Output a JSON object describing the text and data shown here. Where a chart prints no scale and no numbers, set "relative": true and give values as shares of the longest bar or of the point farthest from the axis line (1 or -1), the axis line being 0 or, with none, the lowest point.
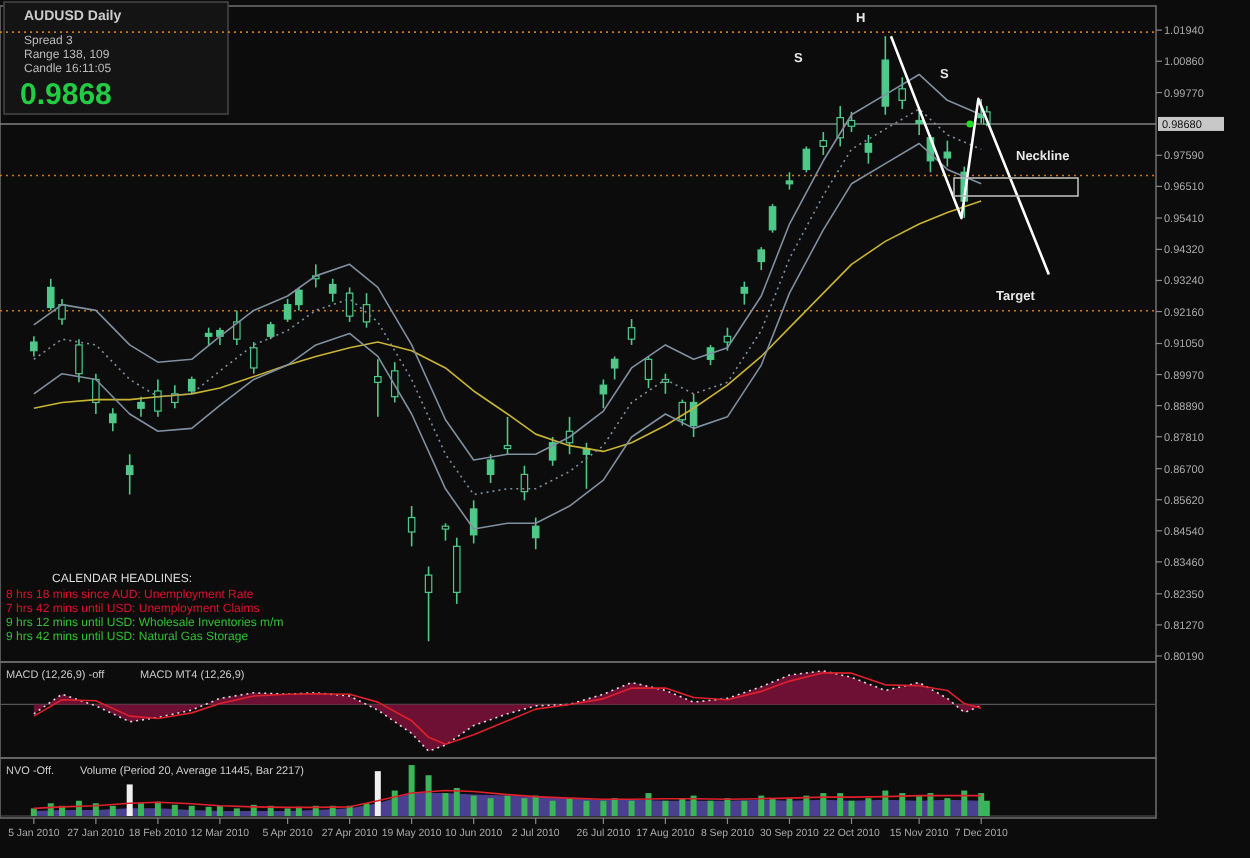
{
  "chart_data": [
    {
      "type": "candlestick",
      "title": "AUDUSD Daily",
      "annotations": [
        "Spread 3",
        "Range 138, 109",
        "Candle 16:11:05",
        "0.9868",
        "CALENDAR HEADLINES:",
        "8 hrs 18 mins since AUD: Unemployment Rate",
        "7 hrs 42 mins until USD: Unemployment Claims",
        "9 hrs 12 mins until USD: Wholesale Inventories m/m",
        "9 hrs 42 mins until USD: Natural Gas Storage",
        "H",
        "S",
        "S",
        "Neckline",
        "Target"
      ],
      "color": "#4fc98a",
      "x": [
        "2010-01-05",
        "2010-01-11",
        "2010-01-15",
        "2010-01-21",
        "2010-01-27",
        "2010-02-02",
        "2010-02-08",
        "2010-02-12",
        "2010-02-18",
        "2010-02-24",
        "2010-03-02",
        "2010-03-08",
        "2010-03-12",
        "2010-03-18",
        "2010-03-24",
        "2010-03-30",
        "2010-04-05",
        "2010-04-09",
        "2010-04-15",
        "2010-04-21",
        "2010-04-27",
        "2010-05-03",
        "2010-05-07",
        "2010-05-13",
        "2010-05-19",
        "2010-05-25",
        "2010-05-31",
        "2010-06-04",
        "2010-06-10",
        "2010-06-16",
        "2010-06-22",
        "2010-06-28",
        "2010-07-02",
        "2010-07-08",
        "2010-07-14",
        "2010-07-20",
        "2010-07-26",
        "2010-07-30",
        "2010-08-05",
        "2010-08-11",
        "2010-08-17",
        "2010-08-23",
        "2010-08-27",
        "2010-09-02",
        "2010-09-08",
        "2010-09-14",
        "2010-09-20",
        "2010-09-24",
        "2010-09-30",
        "2010-10-06",
        "2010-10-12",
        "2010-10-18",
        "2010-10-22",
        "2010-10-28",
        "2010-11-03",
        "2010-11-09",
        "2010-11-15",
        "2010-11-19",
        "2010-11-25",
        "2010-12-01",
        "2010-12-07",
        "2010-12-09"
      ],
      "ohlc": [
        [
          0.908,
          0.913,
          0.906,
          0.911
        ],
        [
          0.923,
          0.933,
          0.922,
          0.93
        ],
        [
          0.924,
          0.926,
          0.917,
          0.919
        ],
        [
          0.91,
          0.912,
          0.897,
          0.9
        ],
        [
          0.898,
          0.9,
          0.886,
          0.89
        ],
        [
          0.883,
          0.888,
          0.88,
          0.886
        ],
        [
          0.865,
          0.872,
          0.858,
          0.868
        ],
        [
          0.888,
          0.892,
          0.885,
          0.89
        ],
        [
          0.894,
          0.898,
          0.885,
          0.887
        ],
        [
          0.893,
          0.896,
          0.888,
          0.89
        ],
        [
          0.894,
          0.899,
          0.893,
          0.898
        ],
        [
          0.913,
          0.916,
          0.91,
          0.914
        ],
        [
          0.913,
          0.916,
          0.91,
          0.915
        ],
        [
          0.918,
          0.922,
          0.91,
          0.912
        ],
        [
          0.909,
          0.911,
          0.9,
          0.902
        ],
        [
          0.913,
          0.918,
          0.912,
          0.917
        ],
        [
          0.919,
          0.926,
          0.918,
          0.924
        ],
        [
          0.924,
          0.93,
          0.922,
          0.929
        ],
        [
          0.934,
          0.938,
          0.93,
          0.933
        ],
        [
          0.928,
          0.933,
          0.925,
          0.931
        ],
        [
          0.928,
          0.93,
          0.918,
          0.92
        ],
        [
          0.924,
          0.928,
          0.916,
          0.918
        ],
        [
          0.899,
          0.905,
          0.885,
          0.897
        ],
        [
          0.901,
          0.904,
          0.89,
          0.892
        ],
        [
          0.85,
          0.854,
          0.84,
          0.845
        ],
        [
          0.83,
          0.833,
          0.807,
          0.824
        ],
        [
          0.847,
          0.848,
          0.842,
          0.846
        ],
        [
          0.84,
          0.843,
          0.82,
          0.824
        ],
        [
          0.844,
          0.856,
          0.841,
          0.853
        ],
        [
          0.865,
          0.872,
          0.862,
          0.87
        ],
        [
          0.875,
          0.885,
          0.872,
          0.874
        ],
        [
          0.865,
          0.868,
          0.856,
          0.859
        ],
        [
          0.843,
          0.85,
          0.839,
          0.847
        ],
        [
          0.87,
          0.878,
          0.868,
          0.876
        ],
        [
          0.88,
          0.885,
          0.872,
          0.876
        ],
        [
          0.872,
          0.876,
          0.86,
          0.874
        ],
        [
          0.893,
          0.898,
          0.888,
          0.896
        ],
        [
          0.902,
          0.906,
          0.898,
          0.905
        ],
        [
          0.916,
          0.919,
          0.91,
          0.912
        ],
        [
          0.905,
          0.906,
          0.895,
          0.898
        ],
        [
          0.898,
          0.9,
          0.893,
          0.897
        ],
        [
          0.89,
          0.891,
          0.882,
          0.884
        ],
        [
          0.882,
          0.893,
          0.878,
          0.89
        ],
        [
          0.905,
          0.91,
          0.903,
          0.909
        ],
        [
          0.913,
          0.916,
          0.908,
          0.911
        ],
        [
          0.928,
          0.932,
          0.924,
          0.93
        ],
        [
          0.939,
          0.944,
          0.936,
          0.943
        ],
        [
          0.95,
          0.959,
          0.949,
          0.958
        ],
        [
          0.966,
          0.97,
          0.964,
          0.967
        ],
        [
          0.971,
          0.979,
          0.97,
          0.978
        ],
        [
          0.981,
          0.984,
          0.976,
          0.979
        ],
        [
          0.989,
          0.993,
          0.979,
          0.982
        ],
        [
          0.988,
          0.991,
          0.984,
          0.986
        ],
        [
          0.977,
          0.983,
          0.973,
          0.98
        ],
        [
          0.993,
          1.0173,
          0.99,
          1.009
        ],
        [
          0.999,
          1.003,
          0.992,
          0.995
        ],
        [
          0.987,
          0.992,
          0.983,
          0.988
        ],
        [
          0.974,
          0.983,
          0.97,
          0.982
        ],
        [
          0.975,
          0.981,
          0.972,
          0.977
        ],
        [
          0.96,
          0.972,
          0.9541,
          0.97
        ],
        [
          0.989,
          0.9955,
          0.987,
          0.99
        ],
        [
          0.991,
          0.993,
          0.986,
          0.9868
        ]
      ],
      "series": [
        {
          "type": "line",
          "color": "#c8b432",
          "x": [
            "2010-01-05",
            "2010-01-15",
            "2010-01-27",
            "2010-02-08",
            "2010-02-18",
            "2010-03-02",
            "2010-03-12",
            "2010-03-24",
            "2010-04-05",
            "2010-04-15",
            "2010-04-27",
            "2010-05-07",
            "2010-05-19",
            "2010-05-31",
            "2010-06-10",
            "2010-06-22",
            "2010-07-02",
            "2010-07-14",
            "2010-07-26",
            "2010-08-05",
            "2010-08-17",
            "2010-08-27",
            "2010-09-08",
            "2010-09-20",
            "2010-09-30",
            "2010-10-12",
            "2010-10-22",
            "2010-11-03",
            "2010-11-15",
            "2010-11-25",
            "2010-12-07"
          ],
          "values": [
            0.888,
            0.89,
            0.891,
            0.891,
            0.892,
            0.893,
            0.895,
            0.899,
            0.903,
            0.906,
            0.909,
            0.911,
            0.908,
            0.902,
            0.894,
            0.886,
            0.879,
            0.875,
            0.873,
            0.876,
            0.882,
            0.888,
            0.896,
            0.906,
            0.916,
            0.928,
            0.938,
            0.946,
            0.952,
            0.956,
            0.96
          ]
        },
        {
          "type": "line",
          "color": "#8090a0",
          "x": [
            "2010-01-05",
            "2010-01-15",
            "2010-01-27",
            "2010-02-08",
            "2010-02-18",
            "2010-03-02",
            "2010-03-12",
            "2010-03-24",
            "2010-04-05",
            "2010-04-15",
            "2010-04-27",
            "2010-05-07",
            "2010-05-19",
            "2010-05-31",
            "2010-06-10",
            "2010-06-22",
            "2010-07-02",
            "2010-07-14",
            "2010-07-26",
            "2010-08-05",
            "2010-08-17",
            "2010-08-27",
            "2010-09-08",
            "2010-09-20",
            "2010-09-30",
            "2010-10-12",
            "2010-10-22",
            "2010-11-03",
            "2010-11-15",
            "2010-11-25",
            "2010-12-07"
          ],
          "values": [
            0.917,
            0.924,
            0.922,
            0.91,
            0.904,
            0.905,
            0.913,
            0.922,
            0.927,
            0.934,
            0.938,
            0.93,
            0.91,
            0.884,
            0.87,
            0.872,
            0.872,
            0.878,
            0.887,
            0.902,
            0.91,
            0.905,
            0.909,
            0.927,
            0.952,
            0.974,
            0.99,
            0.997,
            1.004,
            0.995,
            0.99
          ]
        },
        {
          "type": "line",
          "color": "#8090a0",
          "line_style": "dotted",
          "x": [
            "2010-01-05",
            "2010-01-15",
            "2010-01-27",
            "2010-02-08",
            "2010-02-18",
            "2010-03-02",
            "2010-03-12",
            "2010-03-24",
            "2010-04-05",
            "2010-04-15",
            "2010-04-27",
            "2010-05-07",
            "2010-05-19",
            "2010-05-31",
            "2010-06-10",
            "2010-06-22",
            "2010-07-02",
            "2010-07-14",
            "2010-07-26",
            "2010-08-05",
            "2010-08-17",
            "2010-08-27",
            "2010-09-08",
            "2010-09-20",
            "2010-09-30",
            "2010-10-12",
            "2010-10-22",
            "2010-11-03",
            "2010-11-15",
            "2010-11-25",
            "2010-12-07"
          ],
          "values": [
            0.905,
            0.912,
            0.91,
            0.898,
            0.892,
            0.893,
            0.901,
            0.91,
            0.915,
            0.922,
            0.926,
            0.918,
            0.898,
            0.872,
            0.858,
            0.86,
            0.86,
            0.866,
            0.875,
            0.89,
            0.898,
            0.893,
            0.897,
            0.915,
            0.94,
            0.962,
            0.978,
            0.985,
            0.992,
            0.983,
            0.978
          ]
        },
        {
          "type": "line",
          "color": "#8090a0",
          "x": [
            "2010-01-05",
            "2010-01-15",
            "2010-01-27",
            "2010-02-08",
            "2010-02-18",
            "2010-03-02",
            "2010-03-12",
            "2010-03-24",
            "2010-04-05",
            "2010-04-15",
            "2010-04-27",
            "2010-05-07",
            "2010-05-19",
            "2010-05-31",
            "2010-06-10",
            "2010-06-22",
            "2010-07-02",
            "2010-07-14",
            "2010-07-26",
            "2010-08-05",
            "2010-08-17",
            "2010-08-27",
            "2010-09-08",
            "2010-09-20",
            "2010-09-30",
            "2010-10-12",
            "2010-10-22",
            "2010-11-03",
            "2010-11-15",
            "2010-11-25",
            "2010-12-07"
          ],
          "values": [
            0.893,
            0.9,
            0.898,
            0.886,
            0.88,
            0.881,
            0.889,
            0.898,
            0.903,
            0.91,
            0.914,
            0.906,
            0.886,
            0.86,
            0.846,
            0.848,
            0.848,
            0.854,
            0.863,
            0.878,
            0.886,
            0.881,
            0.885,
            0.903,
            0.928,
            0.95,
            0.966,
            0.973,
            0.98,
            0.971,
            0.966
          ]
        },
        {
          "type": "line",
          "color": "#ffffff",
          "x": [
            "2010-11-05",
            "2010-11-30",
            "2010-12-06",
            "2010-12-31"
          ],
          "values": [
            1.0173,
            0.9541,
            0.9955,
            0.9345
          ]
        }
      ],
      "ref_lines": [
        {
          "axis": "y",
          "value": 1.0187,
          "color": "#c87a14",
          "line_style": "dotted"
        },
        {
          "axis": "y",
          "value": 0.9689,
          "color": "#c87a14",
          "line_style": "dotted"
        },
        {
          "axis": "y",
          "value": 0.9219,
          "color": "#c87a14",
          "line_style": "dotted"
        },
        {
          "axis": "y",
          "value": 0.9868,
          "label": "0.98680",
          "color": "#808080",
          "line_style": "solid"
        }
      ],
      "xlim": [
        "2009-12-24",
        "2011-02-07"
      ],
      "ylim": [
        0.8005,
        1.0264
      ],
      "yticks": [
        {
          "value": 1.0194,
          "label": "1.01940"
        },
        {
          "value": 1.0086,
          "label": "1.00860"
        },
        {
          "value": 0.9977,
          "label": "0.99770"
        },
        {
          "value": 0.9759,
          "label": "0.97590"
        },
        {
          "value": 0.9651,
          "label": "0.96510"
        },
        {
          "value": 0.9541,
          "label": "0.95410"
        },
        {
          "value": 0.9432,
          "label": "0.94320"
        },
        {
          "value": 0.9324,
          "label": "0.93240"
        },
        {
          "value": 0.9216,
          "label": "0.92160"
        },
        {
          "value": 0.9105,
          "label": "0.91050"
        },
        {
          "value": 0.8997,
          "label": "0.89970"
        },
        {
          "value": 0.8889,
          "label": "0.88890"
        },
        {
          "value": 0.8781,
          "label": "0.87810"
        },
        {
          "value": 0.867,
          "label": "0.86700"
        },
        {
          "value": 0.8562,
          "label": "0.85620"
        },
        {
          "value": 0.8454,
          "label": "0.84540"
        },
        {
          "value": 0.8346,
          "label": "0.83460"
        },
        {
          "value": 0.8235,
          "label": "0.82350"
        },
        {
          "value": 0.8127,
          "label": "0.81270"
        },
        {
          "value": 0.8019,
          "label": "0.80190"
        }
      ],
      "tick_labels": "y"
    },
    {
      "type": "line",
      "title": "MACD (12,26,9) -off",
      "subtitle": "MACD MT4 (12,26,9)",
      "relative": true,
      "xlim": [
        "2009-12-24",
        "2011-02-07"
      ],
      "tick_labels": false,
      "series": [
        {
          "type": "area",
          "color": "#6e1034",
          "line_style": "dotted",
          "x": [
            "2010-01-05",
            "2010-01-15",
            "2010-01-27",
            "2010-02-08",
            "2010-02-18",
            "2010-03-02",
            "2010-03-12",
            "2010-03-24",
            "2010-04-05",
            "2010-04-15",
            "2010-04-27",
            "2010-05-07",
            "2010-05-19",
            "2010-05-25",
            "2010-05-31",
            "2010-06-10",
            "2010-06-22",
            "2010-07-02",
            "2010-07-14",
            "2010-07-26",
            "2010-08-05",
            "2010-08-17",
            "2010-08-27",
            "2010-09-08",
            "2010-09-20",
            "2010-09-30",
            "2010-10-12",
            "2010-10-22",
            "2010-11-03",
            "2010-11-15",
            "2010-11-25",
            "2010-12-01",
            "2010-12-07"
          ],
          "values": [
            -0.2,
            0.22,
            -0.03,
            -0.37,
            -0.28,
            -0.12,
            0.13,
            0.25,
            0.22,
            0.25,
            0.18,
            -0.12,
            -0.62,
            -1,
            -0.87,
            -0.45,
            -0.2,
            -0.03,
            0,
            0.22,
            0.47,
            0.3,
            0.05,
            0.13,
            0.38,
            0.63,
            0.72,
            0.58,
            0.3,
            0.47,
            0.13,
            -0.17,
            -0.03
          ]
        },
        {
          "type": "line",
          "color": "#e0202a",
          "x": [
            "2010-01-05",
            "2010-01-15",
            "2010-01-27",
            "2010-02-08",
            "2010-02-18",
            "2010-03-02",
            "2010-03-12",
            "2010-03-24",
            "2010-04-05",
            "2010-04-15",
            "2010-04-27",
            "2010-05-07",
            "2010-05-19",
            "2010-05-25",
            "2010-05-31",
            "2010-06-10",
            "2010-06-22",
            "2010-07-02",
            "2010-07-14",
            "2010-07-26",
            "2010-08-05",
            "2010-08-17",
            "2010-08-27",
            "2010-09-08",
            "2010-09-20",
            "2010-09-30",
            "2010-10-12",
            "2010-10-22",
            "2010-11-03",
            "2010-11-15",
            "2010-11-25",
            "2010-12-01",
            "2010-12-07"
          ],
          "values": [
            -0.25,
            0.1,
            0.08,
            -0.25,
            -0.3,
            -0.18,
            0.02,
            0.18,
            0.22,
            0.23,
            0.22,
            0.05,
            -0.35,
            -0.7,
            -0.85,
            -0.65,
            -0.35,
            -0.1,
            0,
            0.12,
            0.35,
            0.35,
            0.15,
            0.1,
            0.28,
            0.5,
            0.68,
            0.67,
            0.42,
            0.4,
            0.3,
            0.02,
            -0.08
          ]
        }
      ]
    },
    {
      "type": "bar",
      "title": "NVO -Off.",
      "subtitle": "Volume (Period 20, Average 11445, Bar 2217)",
      "relative": true,
      "xlim": [
        "2009-12-24",
        "2011-02-07"
      ],
      "tick_labels": "x",
      "xticks": [
        {
          "value": "2010-01-05",
          "label": "5 Jan 2010"
        },
        {
          "value": "2010-01-27",
          "label": "27 Jan 2010"
        },
        {
          "value": "2010-02-18",
          "label": "18 Feb 2010"
        },
        {
          "value": "2010-03-12",
          "label": "12 Mar 2010"
        },
        {
          "value": "2010-04-05",
          "label": "5 Apr 2010"
        },
        {
          "value": "2010-04-27",
          "label": "27 Apr 2010"
        },
        {
          "value": "2010-05-19",
          "label": "19 May 2010"
        },
        {
          "value": "2010-06-10",
          "label": "10 Jun 2010"
        },
        {
          "value": "2010-07-02",
          "label": "2 Jul 2010"
        },
        {
          "value": "2010-07-26",
          "label": "26 Jul 2010"
        },
        {
          "value": "2010-08-17",
          "label": "17 Aug 2010"
        },
        {
          "value": "2010-09-08",
          "label": "8 Sep 2010"
        },
        {
          "value": "2010-09-30",
          "label": "30 Sep 2010"
        },
        {
          "value": "2010-10-22",
          "label": "22 Oct 2010"
        },
        {
          "value": "2010-11-15",
          "label": "15 Nov 2010"
        },
        {
          "value": "2010-12-07",
          "label": "7 Dec 2010"
        }
      ],
      "x": [
        "2010-01-05",
        "2010-01-11",
        "2010-01-15",
        "2010-01-21",
        "2010-01-27",
        "2010-02-02",
        "2010-02-08",
        "2010-02-12",
        "2010-02-18",
        "2010-02-24",
        "2010-03-02",
        "2010-03-08",
        "2010-03-12",
        "2010-03-18",
        "2010-03-24",
        "2010-03-30",
        "2010-04-05",
        "2010-04-09",
        "2010-04-15",
        "2010-04-21",
        "2010-04-27",
        "2010-05-03",
        "2010-05-07",
        "2010-05-13",
        "2010-05-19",
        "2010-05-25",
        "2010-05-31",
        "2010-06-04",
        "2010-06-10",
        "2010-06-16",
        "2010-06-22",
        "2010-06-28",
        "2010-07-02",
        "2010-07-08",
        "2010-07-14",
        "2010-07-20",
        "2010-07-26",
        "2010-07-30",
        "2010-08-05",
        "2010-08-11",
        "2010-08-17",
        "2010-08-23",
        "2010-08-27",
        "2010-09-02",
        "2010-09-08",
        "2010-09-14",
        "2010-09-20",
        "2010-09-24",
        "2010-09-30",
        "2010-10-06",
        "2010-10-12",
        "2010-10-18",
        "2010-10-22",
        "2010-10-28",
        "2010-11-03",
        "2010-11-09",
        "2010-11-15",
        "2010-11-19",
        "2010-11-25",
        "2010-12-01",
        "2010-12-07",
        "2010-12-09"
      ],
      "values": [
        0.15,
        0.25,
        0.2,
        0.3,
        0.25,
        0.2,
        0.62,
        0.25,
        0.28,
        0.22,
        0.2,
        0.18,
        0.2,
        0.15,
        0.22,
        0.2,
        0.15,
        0.18,
        0.2,
        0.2,
        0.2,
        0.25,
        0.88,
        0.5,
        1,
        0.8,
        0.45,
        0.55,
        0.4,
        0.35,
        0.4,
        0.35,
        0.4,
        0.3,
        0.35,
        0.3,
        0.3,
        0.35,
        0.3,
        0.45,
        0.3,
        0.35,
        0.4,
        0.3,
        0.35,
        0.3,
        0.4,
        0.35,
        0.35,
        0.4,
        0.45,
        0.45,
        0.3,
        0.35,
        0.5,
        0.45,
        0.4,
        0.45,
        0.35,
        0.5,
        0.45,
        0.3
      ],
      "colors": [
        "#3cb45a",
        "#3cb45a",
        "#3cb45a",
        "#3cb45a",
        "#3cb45a",
        "#3cb45a",
        "#f0f0f0",
        "#3cb45a",
        "#3cb45a",
        "#3cb45a",
        "#3cb45a",
        "#3cb45a",
        "#3cb45a",
        "#3cb45a",
        "#3cb45a",
        "#3cb45a",
        "#3cb45a",
        "#3cb45a",
        "#3cb45a",
        "#3cb45a",
        "#3cb45a",
        "#3cb45a",
        "#f0f0f0",
        "#3cb45a",
        "#3cb45a",
        "#3cb45a",
        "#3cb45a",
        "#3cb45a",
        "#3cb45a",
        "#3cb45a",
        "#3cb45a",
        "#3cb45a",
        "#3cb45a",
        "#3cb45a",
        "#3cb45a",
        "#3cb45a",
        "#3cb45a",
        "#3cb45a",
        "#3cb45a",
        "#3cb45a",
        "#3cb45a",
        "#3cb45a",
        "#3cb45a",
        "#3cb45a",
        "#3cb45a",
        "#3cb45a",
        "#3cb45a",
        "#3cb45a",
        "#3cb45a",
        "#3cb45a",
        "#3cb45a",
        "#3cb45a",
        "#3cb45a",
        "#3cb45a",
        "#3cb45a",
        "#3cb45a",
        "#3cb45a",
        "#3cb45a",
        "#3cb45a",
        "#3cb45a",
        "#3cb45a",
        "#3cb45a"
      ],
      "series": [
        {
          "type": "area",
          "color": "#4b3f8f",
          "x": [
            "2010-01-05",
            "2010-01-15",
            "2010-01-27",
            "2010-02-08",
            "2010-02-18",
            "2010-03-02",
            "2010-03-12",
            "2010-03-24",
            "2010-04-05",
            "2010-04-15",
            "2010-04-27",
            "2010-05-07",
            "2010-05-19",
            "2010-05-31",
            "2010-06-10",
            "2010-06-22",
            "2010-07-02",
            "2010-07-14",
            "2010-07-26",
            "2010-08-05",
            "2010-08-17",
            "2010-08-27",
            "2010-09-08",
            "2010-09-20",
            "2010-09-30",
            "2010-10-12",
            "2010-10-22",
            "2010-11-03",
            "2010-11-15",
            "2010-11-25",
            "2010-12-07"
          ],
          "values": [
            0.1,
            0.12,
            0.12,
            0.15,
            0.15,
            0.12,
            0.1,
            0.1,
            0.1,
            0.12,
            0.15,
            0.25,
            0.45,
            0.45,
            0.42,
            0.4,
            0.38,
            0.35,
            0.32,
            0.32,
            0.3,
            0.3,
            0.3,
            0.32,
            0.3,
            0.32,
            0.3,
            0.32,
            0.3,
            0.32,
            0.3
          ]
        },
        {
          "type": "line",
          "color": "#e0202a",
          "x": [
            "2010-01-05",
            "2010-01-15",
            "2010-01-27",
            "2010-02-08",
            "2010-02-18",
            "2010-03-02",
            "2010-03-12",
            "2010-03-24",
            "2010-04-05",
            "2010-04-15",
            "2010-04-27",
            "2010-05-07",
            "2010-05-19",
            "2010-05-31",
            "2010-06-10",
            "2010-06-22",
            "2010-07-02",
            "2010-07-14",
            "2010-07-26",
            "2010-08-05",
            "2010-08-17",
            "2010-08-27",
            "2010-09-08",
            "2010-09-20",
            "2010-09-30",
            "2010-10-12",
            "2010-10-22",
            "2010-11-03",
            "2010-11-15",
            "2010-11-25",
            "2010-12-07"
          ],
          "values": [
            0.15,
            0.18,
            0.2,
            0.25,
            0.27,
            0.24,
            0.2,
            0.18,
            0.17,
            0.17,
            0.18,
            0.3,
            0.45,
            0.5,
            0.48,
            0.42,
            0.38,
            0.35,
            0.33,
            0.33,
            0.34,
            0.34,
            0.33,
            0.34,
            0.35,
            0.37,
            0.37,
            0.38,
            0.4,
            0.4,
            0.4
          ]
        }
      ]
    }
  ]
}
